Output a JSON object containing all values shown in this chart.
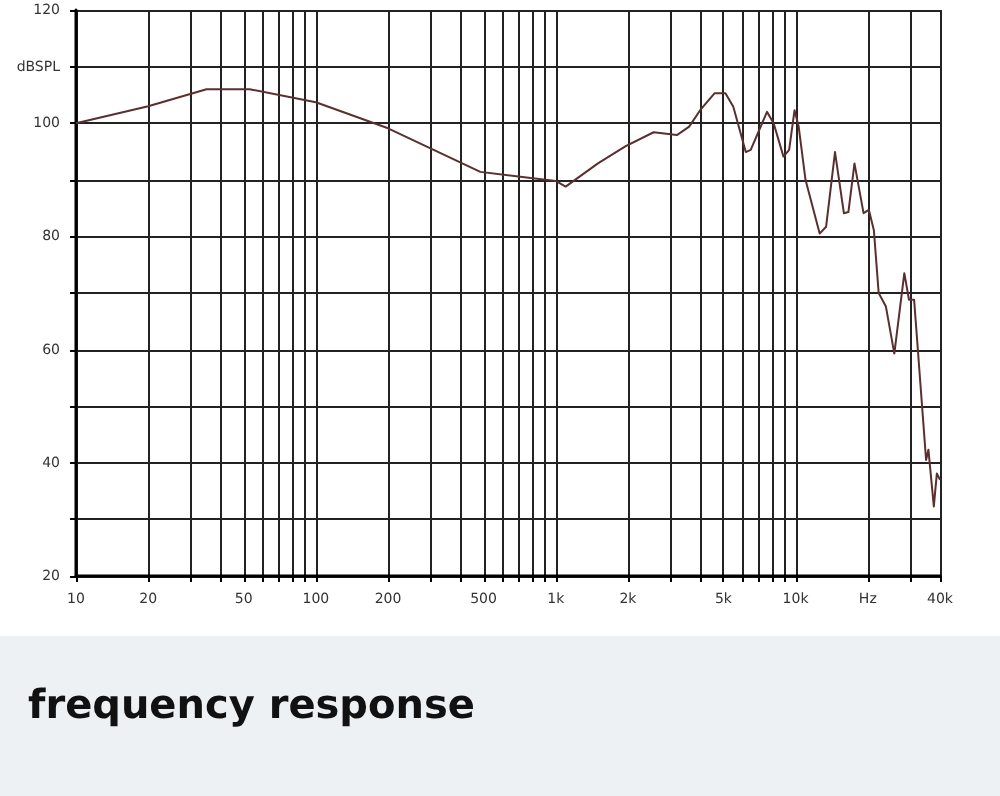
{
  "chart_data": {
    "type": "line",
    "title": "frequency response",
    "log": "x",
    "grid": true,
    "marker": "none",
    "line_style": "solid",
    "x": [
      10,
      20,
      35,
      53,
      100,
      200,
      485,
      1000,
      1100,
      1500,
      1950,
      2560,
      3200,
      3600,
      4000,
      4600,
      5100,
      5500,
      6200,
      6500,
      7600,
      8100,
      8900,
      9400,
      9900,
      10300,
      11000,
      12600,
      13400,
      14600,
      15900,
      16600,
      17600,
      19200,
      20200,
      21200,
      22200,
      23800,
      25800,
      28400,
      29700,
      31200,
      35000,
      35800,
      37700,
      38800,
      40000
    ],
    "series": [
      {
        "color": "#5a2f2f",
        "values": [
          100,
          103,
          106,
          106,
          103.7,
          99.1,
          91.4,
          89.8,
          88.8,
          92.9,
          95.9,
          98.4,
          97.9,
          99.4,
          102.3,
          105.3,
          105.3,
          102.9,
          94.9,
          95.3,
          102,
          100,
          94.1,
          95.3,
          102.3,
          99.4,
          90,
          80.5,
          81.7,
          94.9,
          84.1,
          84.3,
          92.9,
          84.1,
          84.7,
          81.1,
          70,
          67.6,
          59.3,
          73.5,
          68.8,
          68.8,
          40.5,
          42.3,
          32.3,
          38.1,
          37
        ]
      }
    ],
    "xlim": [
      10,
      40000
    ],
    "xticks": [
      10,
      20,
      {
        "value": 30,
        "label": null
      },
      {
        "value": 40,
        "label": null
      },
      50,
      {
        "value": 60,
        "label": null
      },
      {
        "value": 70,
        "label": null
      },
      {
        "value": 80,
        "label": null
      },
      {
        "value": 90,
        "label": null
      },
      100,
      200,
      {
        "value": 300,
        "label": null
      },
      {
        "value": 400,
        "label": null
      },
      500,
      {
        "value": 600,
        "label": null
      },
      {
        "value": 700,
        "label": null
      },
      {
        "value": 800,
        "label": null
      },
      {
        "value": 900,
        "label": null
      },
      {
        "value": 1000,
        "label": "1k"
      },
      {
        "value": 2000,
        "label": "2k"
      },
      {
        "value": 3000,
        "label": null
      },
      {
        "value": 4000,
        "label": null
      },
      {
        "value": 5000,
        "label": "5k"
      },
      {
        "value": 6000,
        "label": null
      },
      {
        "value": 7000,
        "label": null
      },
      {
        "value": 8000,
        "label": null
      },
      {
        "value": 9000,
        "label": null
      },
      {
        "value": 10000,
        "label": "10k"
      },
      {
        "value": 20000,
        "label": "Hz"
      },
      {
        "value": 30000,
        "label": null
      },
      {
        "value": 40000,
        "label": "40k"
      }
    ],
    "ylim": [
      20,
      120
    ],
    "yticks": [
      20,
      {
        "value": 30,
        "label": null
      },
      40,
      {
        "value": 50,
        "label": null
      },
      60,
      {
        "value": 70,
        "label": null
      },
      80,
      {
        "value": 90,
        "label": null
      },
      100,
      {
        "value": 110,
        "label": "dBSPL"
      },
      120
    ]
  }
}
